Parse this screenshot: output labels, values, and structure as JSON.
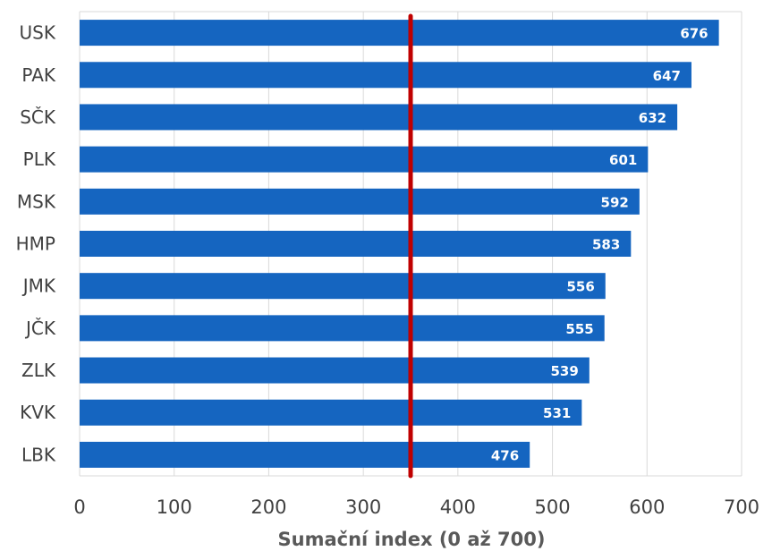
{
  "chart_data": {
    "type": "bar",
    "orientation": "horizontal",
    "categories": [
      "USK",
      "PAK",
      "SČK",
      "PLK",
      "MSK",
      "HMP",
      "JMK",
      "JČK",
      "ZLK",
      "KVK",
      "LBK"
    ],
    "values": [
      676,
      647,
      632,
      601,
      592,
      583,
      556,
      555,
      539,
      531,
      476
    ],
    "xlabel": "Sumační index (0 až 700)",
    "ylabel": "",
    "xlim": [
      0,
      700
    ],
    "xticks": [
      "0",
      "100",
      "200",
      "300",
      "400",
      "500",
      "600",
      "700"
    ],
    "reference_line": 350,
    "grid": true,
    "legend": "none",
    "colors": {
      "bar": "#1565C0",
      "reference_line": "#C00000",
      "grid": "#D9D9D9",
      "text": "#404040"
    }
  }
}
